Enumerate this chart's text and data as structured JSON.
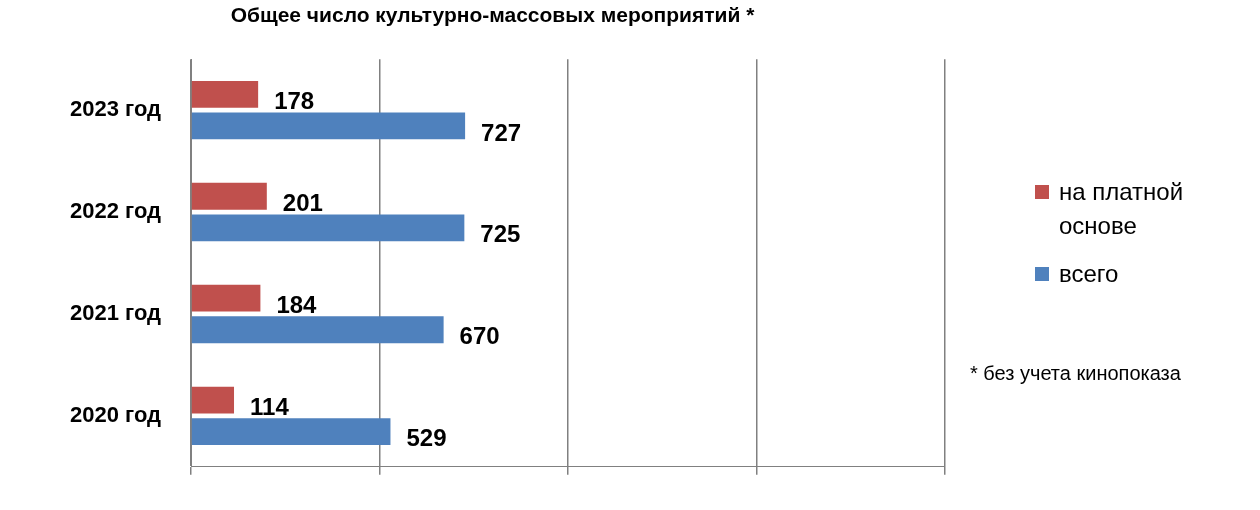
{
  "chart_data": {
    "type": "bar",
    "orientation": "horizontal",
    "title": "Общее число культурно-массовых мероприятий *",
    "categories": [
      "2023 год",
      "2022 год",
      "2021 год",
      "2020 год"
    ],
    "series": [
      {
        "name": "на платной основе",
        "color": "#c0504d",
        "values": [
          178,
          201,
          184,
          114
        ]
      },
      {
        "name": "всего",
        "color": "#4f81bd",
        "values": [
          727,
          725,
          670,
          529
        ]
      }
    ],
    "xlim": [
      0,
      2000
    ],
    "xticks": [
      {
        "value": 0,
        "label": null
      },
      {
        "value": 500,
        "label": null
      },
      {
        "value": 1000,
        "label": null
      },
      {
        "value": 1500,
        "label": null
      },
      {
        "value": 2000,
        "label": null
      }
    ],
    "grid": "x",
    "legend": "right",
    "data_labels": true,
    "annotations": [
      "* без учета кинопоказа"
    ]
  }
}
